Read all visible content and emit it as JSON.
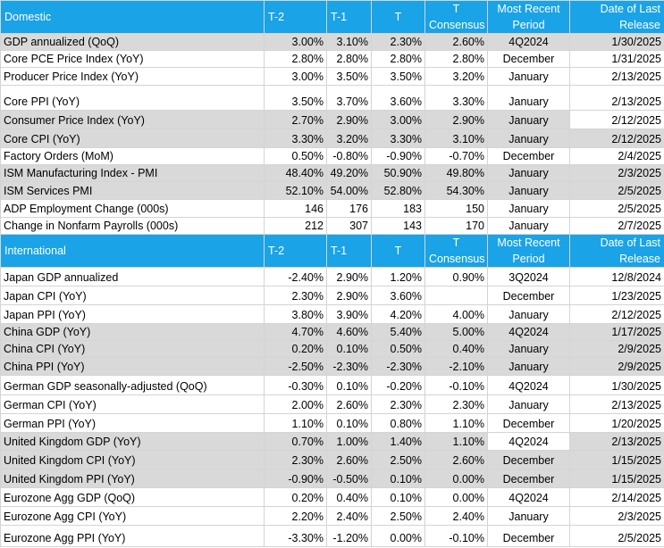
{
  "sections": [
    {
      "header": [
        "Domestic",
        "T-2",
        "T-1",
        "T",
        "T Consensus",
        "Most Recent Period",
        "Date of Last Release"
      ],
      "rows": [
        [
          "GDP annualized (QoQ)",
          "3.00%",
          "3.10%",
          "2.30%",
          "2.60%",
          "4Q2024",
          "1/30/2025"
        ],
        [
          "Core PCE Price Index (YoY)",
          "2.80%",
          "2.80%",
          "2.80%",
          "2.80%",
          "December",
          "1/31/2025"
        ],
        [
          "Producer Price Index (YoY)",
          "3.00%",
          "3.50%",
          "3.50%",
          "3.20%",
          "January",
          "2/13/2025"
        ],
        [
          "Core PPI (YoY)",
          "3.50%",
          "3.70%",
          "3.60%",
          "3.30%",
          "January",
          "2/13/2025"
        ],
        [
          "Consumer Price Index (YoY)",
          "2.70%",
          "2.90%",
          "3.00%",
          "2.90%",
          "January",
          "2/12/2025"
        ],
        [
          "Core CPI  (YoY)",
          "3.30%",
          "3.20%",
          "3.30%",
          "3.10%",
          "January",
          "2/12/2025"
        ],
        [
          "Factory Orders (MoM)",
          "0.50%",
          "-0.80%",
          "-0.90%",
          "-0.70%",
          "December",
          "2/4/2025"
        ],
        [
          "ISM Manufacturing Index - PMI",
          "48.40%",
          "49.20%",
          "50.90%",
          "49.80%",
          "January",
          "2/3/2025"
        ],
        [
          "ISM Services PMI",
          "52.10%",
          "54.00%",
          "52.80%",
          "54.30%",
          "January",
          "2/5/2025"
        ],
        [
          "ADP Employment Change (000s)",
          "146",
          "176",
          "183",
          "150",
          "January",
          "2/5/2025"
        ],
        [
          "Change in Nonfarm Payrolls (000s)",
          "212",
          "307",
          "143",
          "170",
          "January",
          "2/7/2025"
        ]
      ]
    },
    {
      "header": [
        "International",
        "T-2",
        "T-1",
        "T",
        "T Consensus",
        "Most Recent Period",
        "Date of Last Release"
      ],
      "rows": [
        [
          "Japan GDP annualized",
          "-2.40%",
          "2.90%",
          "1.20%",
          "0.90%",
          "3Q2024",
          "12/8/2024"
        ],
        [
          "Japan CPI (YoY)",
          "2.30%",
          "2.90%",
          "3.60%",
          null,
          "December",
          "1/23/2025"
        ],
        [
          "Japan PPI (YoY)",
          "3.80%",
          "3.90%",
          "4.20%",
          "4.00%",
          "January",
          "2/12/2025"
        ],
        [
          "China GDP (YoY)",
          "4.70%",
          "4.60%",
          "5.40%",
          "5.00%",
          "4Q2024",
          "1/17/2025"
        ],
        [
          "China CPI (YoY)",
          "0.20%",
          "0.10%",
          "0.50%",
          "0.40%",
          "January",
          "2/9/2025"
        ],
        [
          "China PPI (YoY)",
          "-2.50%",
          "-2.30%",
          "-2.30%",
          "-2.10%",
          "January",
          "2/9/2025"
        ],
        [
          "German GDP seasonally-adjusted (QoQ)",
          "-0.30%",
          "0.10%",
          "-0.20%",
          "-0.10%",
          "4Q2024",
          "1/30/2025"
        ],
        [
          "German CPI (YoY)",
          "2.00%",
          "2.60%",
          "2.30%",
          "2.30%",
          "January",
          "2/13/2025"
        ],
        [
          "German PPI (YoY)",
          "1.10%",
          "0.10%",
          "0.80%",
          "1.10%",
          "December",
          "1/20/2025"
        ],
        [
          "United Kingdom GDP (YoY)",
          "0.70%",
          "1.00%",
          "1.40%",
          "1.10%",
          "4Q2024",
          "2/13/2025"
        ],
        [
          "United Kingdom CPI (YoY)",
          "2.30%",
          "2.60%",
          "2.50%",
          "2.60%",
          "December",
          "1/15/2025"
        ],
        [
          "United Kingdom  PPI (YoY)",
          "-0.90%",
          "-0.50%",
          "0.10%",
          "0.00%",
          "December",
          "1/15/2025"
        ],
        [
          "Eurozone Agg GDP (QoQ)",
          "0.20%",
          "0.40%",
          "0.10%",
          "0.00%",
          "4Q2024",
          "2/14/2025"
        ],
        [
          "Eurozone Agg CPI (YoY)",
          "2.20%",
          "2.40%",
          "2.50%",
          "2.40%",
          "January",
          "2/3/2025"
        ],
        [
          "Eurozone Agg PPI (YoY)",
          "-3.30%",
          "-1.20%",
          "0.00%",
          "-0.10%",
          "December",
          "2/5/2025"
        ]
      ]
    }
  ]
}
